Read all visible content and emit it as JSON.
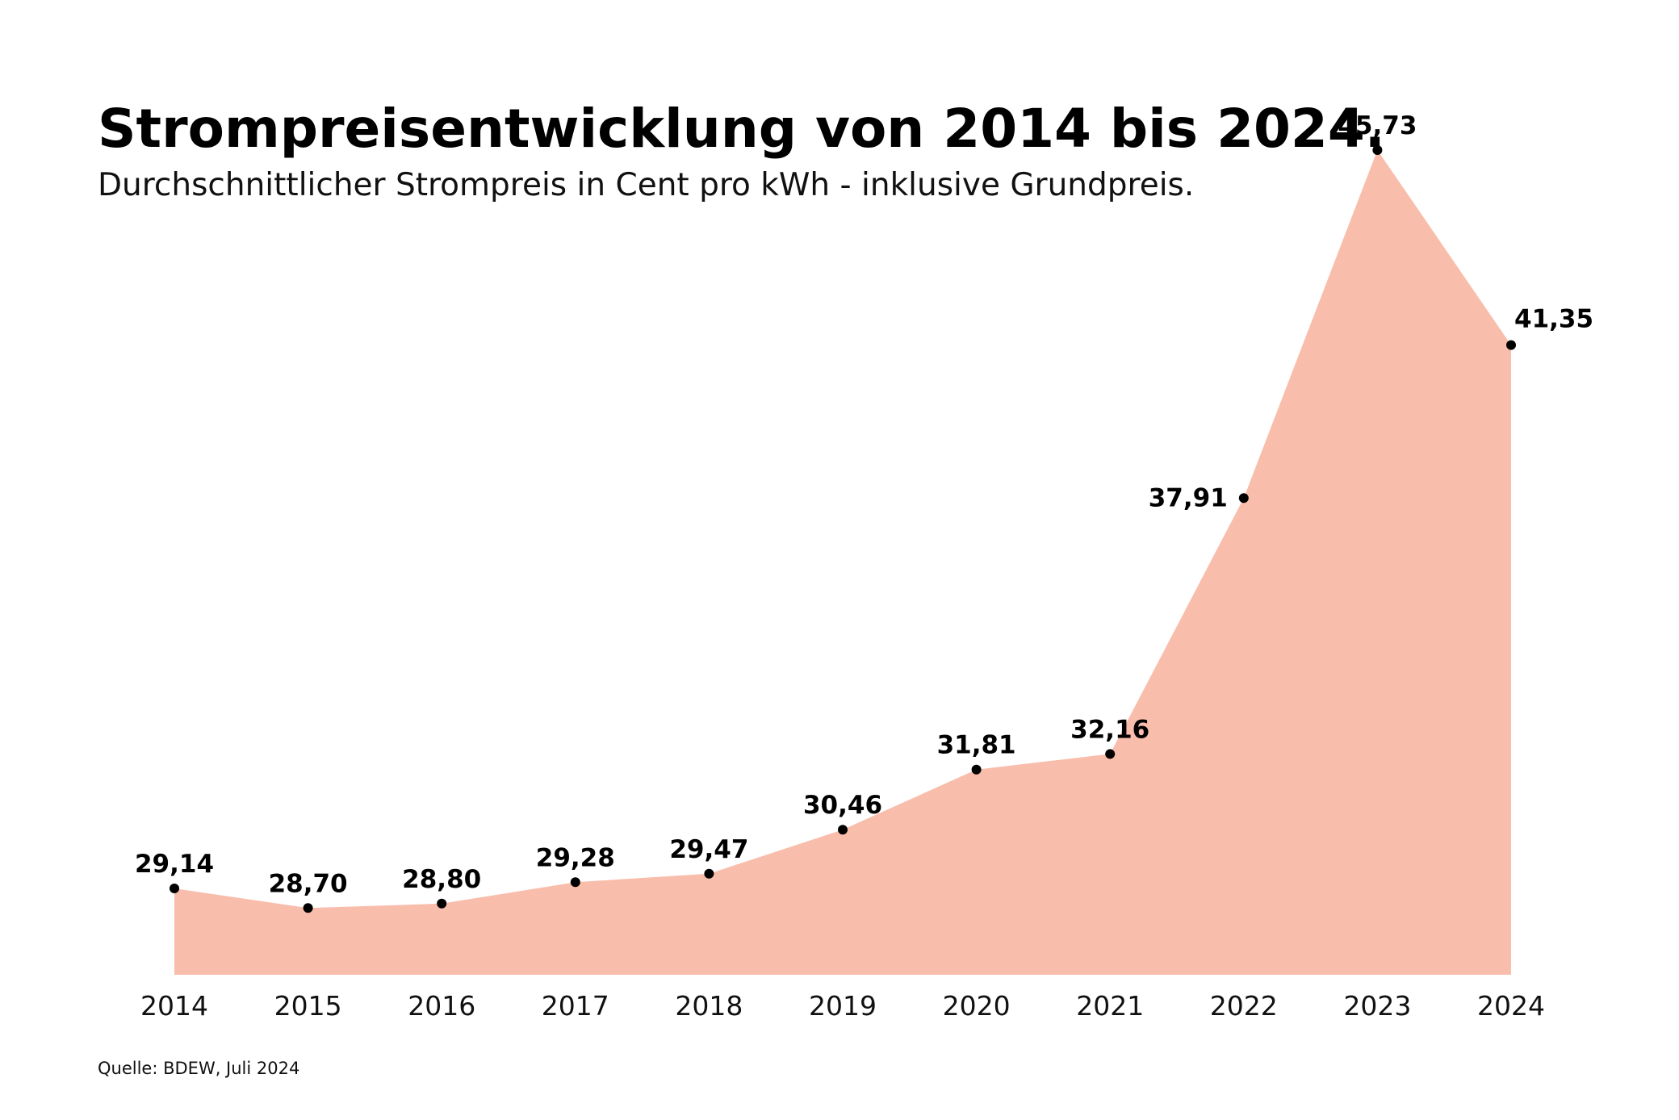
{
  "title": "Strompreisentwicklung von 2014 bis 2024.",
  "subtitle": "Durchschnittlicher Strompreis in Cent pro kWh - inklusive Grundpreis.",
  "source": "Quelle: BDEW, Juli 2024",
  "chart_data": {
    "type": "area",
    "title": "Strompreisentwicklung von 2014 bis 2024.",
    "subtitle": "Durchschnittlicher Strompreis in Cent pro kWh - inklusive Grundpreis.",
    "xlabel": "",
    "ylabel": "",
    "categories": [
      "2014",
      "2015",
      "2016",
      "2017",
      "2018",
      "2019",
      "2020",
      "2021",
      "2022",
      "2023",
      "2024"
    ],
    "values": [
      29.14,
      28.7,
      28.8,
      29.28,
      29.47,
      30.46,
      31.81,
      32.16,
      37.91,
      45.73,
      41.35
    ],
    "labels": [
      "29,14",
      "28,70",
      "28,80",
      "29,28",
      "29,47",
      "30,46",
      "31,81",
      "32,16",
      "37,91",
      "45,73",
      "41,35"
    ],
    "label_positions": [
      "above",
      "above",
      "above",
      "above",
      "above",
      "above",
      "above",
      "above",
      "left",
      "above",
      "above-right"
    ],
    "ylim": [
      27.2,
      45.73
    ],
    "grid": false,
    "fill_color": "#f9bdac",
    "marker_color": "#000000"
  }
}
